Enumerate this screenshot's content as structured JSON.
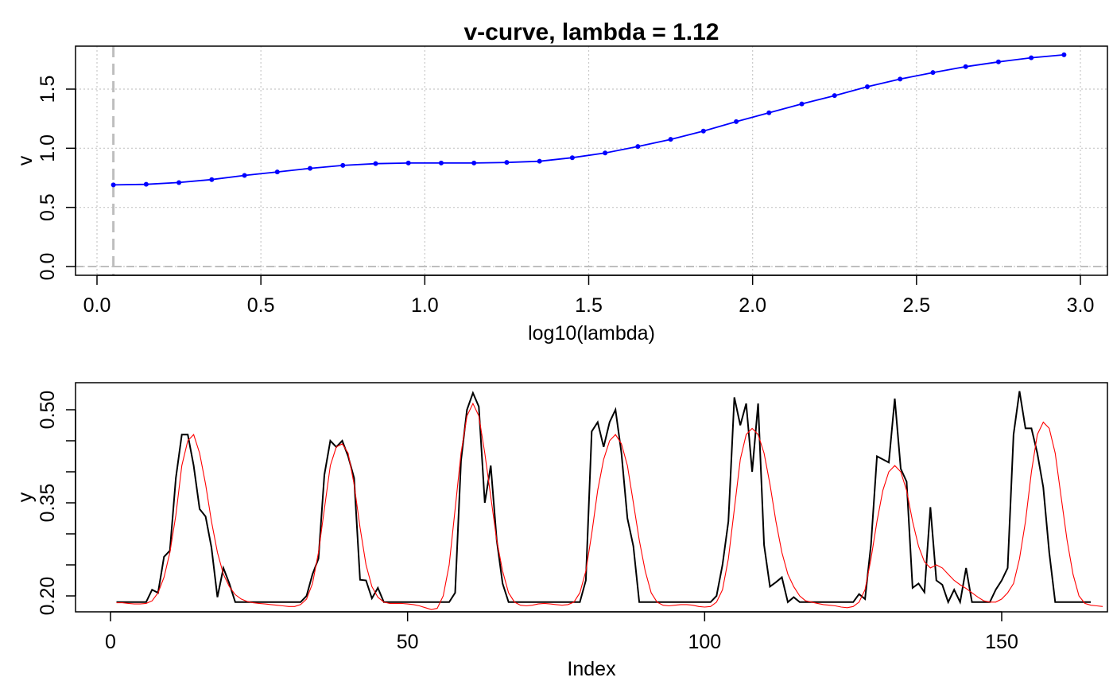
{
  "chart_data": [
    {
      "type": "line",
      "title": "v-curve, lambda =  1.12",
      "xlabel": "log10(lambda)",
      "ylabel": "v",
      "xlim": [
        0,
        3
      ],
      "ylim": [
        0,
        1.8
      ],
      "xticks": [
        0.0,
        0.5,
        1.0,
        1.5,
        2.0,
        2.5,
        3.0
      ],
      "xtick_labels": [
        "0.0",
        "0.5",
        "1.0",
        "1.5",
        "2.0",
        "2.5",
        "3.0"
      ],
      "yticks": [
        0.0,
        0.5,
        1.0,
        1.5
      ],
      "ytick_labels": [
        "0.0",
        "0.5",
        "1.0",
        "1.5"
      ],
      "grid": true,
      "hline": 0,
      "vline": 0.05,
      "series": [
        {
          "color": "#0000ff",
          "markers": true,
          "x": [
            0.05,
            0.15,
            0.25,
            0.35,
            0.45,
            0.55,
            0.65,
            0.75,
            0.85,
            0.95,
            1.05,
            1.15,
            1.25,
            1.35,
            1.45,
            1.55,
            1.65,
            1.75,
            1.85,
            1.95,
            2.05,
            2.15,
            2.25,
            2.35,
            2.45,
            2.55,
            2.65,
            2.75,
            2.85,
            2.95
          ],
          "y": [
            0.69,
            0.695,
            0.71,
            0.735,
            0.77,
            0.8,
            0.83,
            0.855,
            0.87,
            0.875,
            0.875,
            0.875,
            0.88,
            0.89,
            0.92,
            0.96,
            1.015,
            1.075,
            1.145,
            1.225,
            1.3,
            1.375,
            1.445,
            1.52,
            1.585,
            1.64,
            1.69,
            1.73,
            1.765,
            1.79
          ]
        }
      ]
    },
    {
      "type": "line",
      "title": "",
      "xlabel": "Index",
      "ylabel": "y",
      "xlim": [
        1,
        161
      ],
      "ylim": [
        0.19,
        0.52
      ],
      "xticks": [
        0,
        50,
        100,
        150
      ],
      "xtick_labels": [
        "0",
        "50",
        "100",
        "150"
      ],
      "yticks": [
        0.2,
        0.25,
        0.3,
        0.35,
        0.4,
        0.45,
        0.5
      ],
      "ytick_labels": [
        "0.20",
        "",
        "",
        "0.35",
        "",
        "",
        "0.50"
      ],
      "grid": false,
      "series": [
        {
          "color": "#000000",
          "values": [
            0.19,
            0.19,
            0.19,
            0.19,
            0.19,
            0.19,
            0.21,
            0.205,
            0.263,
            0.273,
            0.39,
            0.46,
            0.46,
            0.41,
            0.34,
            0.328,
            0.278,
            0.198,
            0.245,
            0.22,
            0.19,
            0.19,
            0.19,
            0.19,
            0.19,
            0.19,
            0.19,
            0.19,
            0.19,
            0.19,
            0.19,
            0.19,
            0.2,
            0.235,
            0.26,
            0.395,
            0.45,
            0.44,
            0.45,
            0.425,
            0.39,
            0.226,
            0.225,
            0.196,
            0.213,
            0.19,
            0.19,
            0.19,
            0.19,
            0.19,
            0.19,
            0.19,
            0.19,
            0.19,
            0.19,
            0.19,
            0.19,
            0.205,
            0.418,
            0.5,
            0.527,
            0.505,
            0.35,
            0.41,
            0.29,
            0.22,
            0.19,
            0.19,
            0.19,
            0.19,
            0.19,
            0.19,
            0.19,
            0.19,
            0.19,
            0.19,
            0.19,
            0.19,
            0.19,
            0.225,
            0.465,
            0.48,
            0.44,
            0.48,
            0.5,
            0.43,
            0.325,
            0.28,
            0.19,
            0.19,
            0.19,
            0.19,
            0.19,
            0.19,
            0.19,
            0.19,
            0.19,
            0.19,
            0.19,
            0.19,
            0.19,
            0.2,
            0.25,
            0.32,
            0.52,
            0.475,
            0.51,
            0.4,
            0.51,
            0.282,
            0.215,
            0.222,
            0.23,
            0.19,
            0.198,
            0.19,
            0.19,
            0.19,
            0.19,
            0.19,
            0.19,
            0.19,
            0.19,
            0.19,
            0.19,
            0.203,
            0.195,
            0.283,
            0.425,
            0.42,
            0.415,
            0.518,
            0.405,
            0.384,
            0.213,
            0.22,
            0.206,
            0.343,
            0.225,
            0.218,
            0.19,
            0.21,
            0.19,
            0.245,
            0.19,
            0.19,
            0.19,
            0.19,
            0.21,
            0.225,
            0.245,
            0.46,
            0.53,
            0.47,
            0.47,
            0.43,
            0.375,
            0.27,
            0.19,
            0.19,
            0.19,
            0.19,
            0.19,
            0.19,
            0.19
          ]
        },
        {
          "color": "#ff0000",
          "values": [
            0.189,
            0.189,
            0.188,
            0.187,
            0.187,
            0.188,
            0.192,
            0.205,
            0.23,
            0.27,
            0.33,
            0.41,
            0.45,
            0.46,
            0.43,
            0.38,
            0.32,
            0.27,
            0.235,
            0.215,
            0.202,
            0.195,
            0.191,
            0.189,
            0.188,
            0.187,
            0.186,
            0.185,
            0.184,
            0.183,
            0.183,
            0.186,
            0.195,
            0.22,
            0.27,
            0.34,
            0.41,
            0.44,
            0.445,
            0.43,
            0.38,
            0.31,
            0.25,
            0.215,
            0.198,
            0.19,
            0.188,
            0.188,
            0.188,
            0.187,
            0.186,
            0.184,
            0.181,
            0.178,
            0.18,
            0.2,
            0.25,
            0.34,
            0.43,
            0.49,
            0.51,
            0.49,
            0.43,
            0.36,
            0.29,
            0.24,
            0.205,
            0.19,
            0.185,
            0.184,
            0.185,
            0.187,
            0.188,
            0.187,
            0.186,
            0.185,
            0.186,
            0.19,
            0.205,
            0.24,
            0.3,
            0.37,
            0.42,
            0.45,
            0.46,
            0.445,
            0.41,
            0.35,
            0.29,
            0.24,
            0.205,
            0.19,
            0.185,
            0.184,
            0.185,
            0.186,
            0.186,
            0.185,
            0.183,
            0.182,
            0.183,
            0.19,
            0.21,
            0.26,
            0.34,
            0.42,
            0.46,
            0.47,
            0.46,
            0.43,
            0.38,
            0.32,
            0.27,
            0.235,
            0.215,
            0.2,
            0.192,
            0.19,
            0.188,
            0.186,
            0.185,
            0.184,
            0.182,
            0.181,
            0.183,
            0.19,
            0.21,
            0.26,
            0.32,
            0.37,
            0.4,
            0.41,
            0.4,
            0.37,
            0.32,
            0.28,
            0.255,
            0.245,
            0.25,
            0.245,
            0.235,
            0.225,
            0.218,
            0.212,
            0.205,
            0.198,
            0.192,
            0.19,
            0.19,
            0.195,
            0.205,
            0.22,
            0.26,
            0.32,
            0.4,
            0.46,
            0.48,
            0.47,
            0.43,
            0.36,
            0.29,
            0.235,
            0.2,
            0.188,
            0.185,
            0.184,
            0.183
          ]
        }
      ]
    }
  ]
}
